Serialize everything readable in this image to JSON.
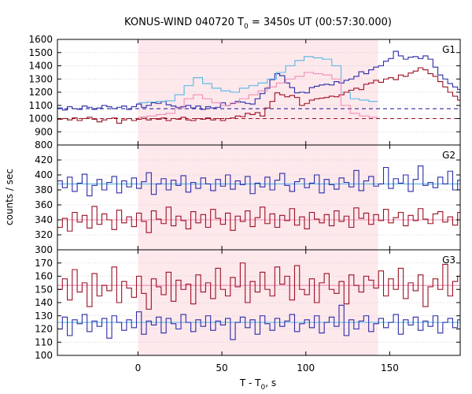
{
  "chart_data": {
    "type": "line",
    "title": "KONUS-WIND 040720 T",
    "title_sub": "0",
    "title_rest": " = 3450s UT (00:57:30.000)",
    "xlabel": "T - T",
    "xlabel_sub": "0",
    "xlabel_rest": ", s",
    "ylabel": "counts / sec",
    "xlim": [
      -48,
      192
    ],
    "xticks": [
      0,
      50,
      100,
      150
    ],
    "highlight": {
      "x0": 0,
      "x1": 143,
      "color": "#fde8ec"
    },
    "colors": {
      "blue": "#2b2ba8",
      "red": "#9b1022",
      "lightblue": "#55b8e6",
      "pink": "#f08eb6",
      "grid": "#cccccc"
    },
    "panels": [
      {
        "name": "G1",
        "ylim": [
          800,
          1600
        ],
        "yticks": [
          800,
          900,
          1000,
          1100,
          1200,
          1300,
          1400,
          1500,
          1600
        ],
        "background_levels": [
          {
            "y": 1075,
            "color": "blue",
            "dash": true
          },
          {
            "y": 1000,
            "color": "red",
            "dash": true
          }
        ],
        "series": [
          {
            "color": "blue",
            "step": 2.944,
            "x0": -48,
            "values": [
              1080,
              1065,
              1090,
              1075,
              1070,
              1095,
              1085,
              1070,
              1080,
              1100,
              1090,
              1075,
              1085,
              1095,
              1070,
              1090,
              1110,
              1085,
              1100,
              1120,
              1115,
              1130,
              1105,
              1095,
              1085,
              1090,
              1100,
              1080,
              1095,
              1070,
              1090,
              1080,
              1085,
              1120,
              1100,
              1115,
              1130,
              1125,
              1115,
              1110,
              1150,
              1190,
              1230,
              1295,
              1340,
              1325,
              1270,
              1235,
              1195,
              1200,
              1195,
              1235,
              1245,
              1255,
              1260,
              1255,
              1280,
              1270,
              1290,
              1300,
              1320,
              1355,
              1340,
              1370,
              1390,
              1400,
              1435,
              1455,
              1510,
              1475,
              1450,
              1465,
              1470,
              1455,
              1475,
              1450,
              1390,
              1330,
              1300,
              1265,
              1240,
              1220,
              1200,
              1175,
              1155,
              1150,
              1145,
              1140,
              1150,
              1135,
              1120,
              1125,
              1130,
              1120,
              1110,
              1100,
              1090,
              1080,
              1075,
              1080,
              1095,
              1070,
              1085,
              1090,
              1075,
              1080,
              1090,
              1070,
              1085,
              1095,
              1080,
              1075,
              1090,
              1085,
              1100,
              1080,
              1075,
              1085,
              1090,
              1095,
              1080,
              1090
            ]
          },
          {
            "color": "lightblue",
            "step": 5.5,
            "x0": 0,
            "values": [
              1120,
              1125,
              1130,
              1135,
              1180,
              1250,
              1310,
              1265,
              1230,
              1210,
              1200,
              1230,
              1250,
              1270,
              1300,
              1350,
              1400,
              1440,
              1470,
              1460,
              1450,
              1400,
              1200,
              1150,
              1140,
              1130
            ]
          },
          {
            "color": "red",
            "step": 2.944,
            "x0": -48,
            "values": [
              995,
              1000,
              990,
              1005,
              985,
              1000,
              1010,
              995,
              975,
              990,
              1000,
              1005,
              965,
              990,
              1000,
              985,
              995,
              1010,
              990,
              1000,
              995,
              1005,
              985,
              1000,
              995,
              1010,
              990,
              985,
              1000,
              995,
              1005,
              990,
              1000,
              985,
              1000,
              1005,
              1020,
              1015,
              1040,
              1030,
              1045,
              1020,
              1080,
              1130,
              1195,
              1180,
              1165,
              1175,
              1160,
              1100,
              1115,
              1140,
              1150,
              1155,
              1160,
              1170,
              1165,
              1180,
              1200,
              1215,
              1230,
              1220,
              1260,
              1270,
              1290,
              1275,
              1300,
              1310,
              1295,
              1330,
              1320,
              1345,
              1360,
              1385,
              1370,
              1340,
              1320,
              1280,
              1240,
              1200,
              1170,
              1140,
              1120,
              1100,
              1080,
              1065,
              1050,
              1040,
              1035,
              1030,
              1040,
              1020,
              1010,
              1020,
              1005,
              995,
              1000,
              1015,
              990,
              1010,
              995,
              990,
              1005,
              1000,
              985,
              1000,
              995,
              1010,
              990,
              985,
              1000,
              1005,
              995,
              990,
              1000,
              995,
              985,
              1000,
              990,
              995,
              1005,
              990
            ]
          },
          {
            "color": "pink",
            "step": 5.5,
            "x0": 0,
            "values": [
              1010,
              1020,
              1030,
              1040,
              1080,
              1150,
              1180,
              1150,
              1120,
              1100,
              1120,
              1150,
              1180,
              1210,
              1240,
              1270,
              1300,
              1320,
              1350,
              1340,
              1330,
              1300,
              1100,
              1040,
              1020,
              1010
            ]
          }
        ]
      },
      {
        "name": "G2",
        "ylim": [
          300,
          440
        ],
        "yticks": [
          300,
          320,
          340,
          360,
          380,
          400,
          420
        ],
        "background_levels": [
          {
            "y": 388,
            "color": "lightblue",
            "dash": false
          },
          {
            "y": 340,
            "color": "pink",
            "dash": false
          }
        ],
        "series": [
          {
            "color": "blue",
            "step": 2.944,
            "x0": -48,
            "values": [
              392,
              383,
              397,
              378,
              389,
              401,
              372,
              386,
              394,
              380,
              390,
              398,
              376,
              392,
              384,
              396,
              382,
              391,
              403,
              374,
              388,
              395,
              380,
              393,
              386,
              399,
              377,
              390,
              382,
              396,
              388,
              379,
              394,
              385,
              400,
              381,
              392,
              387,
              398,
              375,
              389,
              384,
              397,
              380,
              393,
              402,
              386,
              378,
              391,
              395,
              383,
              389,
              400,
              376,
              394,
              387,
              381,
              396,
              390,
              384,
              406,
              379,
              392,
              398,
              385,
              388,
              410,
              382,
              395,
              389,
              400,
              378,
              394,
              412,
              386,
              390,
              383,
              397,
              388,
              405,
              380,
              393,
              387,
              399,
              384,
              396,
              390,
              381,
              403,
              388,
              392,
              378,
              396,
              386,
              401,
              389,
              383,
              397,
              391,
              385,
              402,
              379,
              394,
              388,
              397,
              382,
              392,
              400,
              386,
              391,
              381,
              396,
              388,
              393,
              384,
              398,
              389,
              387,
              400,
              390
            ]
          },
          {
            "color": "red",
            "step": 2.944,
            "x0": -48,
            "values": [
              330,
              342,
              325,
              350,
              337,
              346,
              329,
              358,
              334,
              348,
              340,
              327,
              353,
              336,
              344,
              331,
              349,
              338,
              323,
              352,
              341,
              335,
              357,
              332,
              345,
              339,
              328,
              351,
              336,
              347,
              330,
              354,
              342,
              334,
              349,
              326,
              345,
              338,
              352,
              331,
              343,
              357,
              335,
              348,
              330,
              346,
              339,
              355,
              333,
              344,
              328,
              350,
              341,
              336,
              347,
              332,
              352,
              338,
              345,
              330,
              356,
              342,
              349,
              334,
              347,
              339,
              354,
              336,
              343,
              350,
              332,
              346,
              339,
              355,
              341,
              335,
              348,
              351,
              337,
              344,
              333,
              350,
              340,
              346,
              353,
              338,
              344,
              331,
              349,
              342,
              336,
              352,
              340,
              347,
              333,
              350,
              343,
              338,
              355,
              341,
              346,
              332,
              349,
              339,
              345,
              336,
              351,
              342,
              334,
              348,
              340,
              352,
              337,
              345,
              331,
              349,
              343,
              338,
              353,
              340
            ]
          }
        ]
      },
      {
        "name": "G3",
        "ylim": [
          100,
          180
        ],
        "yticks": [
          100,
          110,
          120,
          130,
          140,
          150,
          160,
          170
        ],
        "background_levels": [
          {
            "y": 153,
            "color": "pink",
            "dash": false
          },
          {
            "y": 125,
            "color": "lightblue",
            "dash": false
          }
        ],
        "series": [
          {
            "color": "red",
            "step": 2.944,
            "x0": -48,
            "values": [
              150,
              158,
              142,
              165,
              148,
              155,
              137,
              162,
              145,
              153,
              149,
              167,
              140,
              156,
              151,
              144,
              160,
              147,
              135,
              158,
              152,
              146,
              163,
              141,
              157,
              150,
              154,
              139,
              161,
              148,
              155,
              143,
              166,
              150,
              145,
              159,
              152,
              170,
              140,
              156,
              148,
              163,
              150,
              145,
              167,
              154,
              160,
              142,
              168,
              150,
              146,
              158,
              140,
              155,
              162,
              150,
              147,
              156,
              139,
              161,
              153,
              148,
              160,
              157,
              151,
              164,
              145,
              158,
              150,
              166,
              143,
              155,
              149,
              161,
              137,
              152,
              158,
              150,
              169,
              145,
              156,
              160,
              148,
              153,
              141,
              163,
              150,
              157,
              145,
              166,
              152,
              149,
              170,
              140,
              156,
              161,
              147,
              155,
              143,
              168,
              150,
              154,
              141,
              163,
              148,
              157,
              151,
              146,
              162,
              153,
              144,
              159,
              150,
              155,
              147,
              161,
              149,
              152,
              158,
              150
            ]
          },
          {
            "color": "blue",
            "step": 2.944,
            "x0": -48,
            "values": [
              120,
              129,
              115,
              127,
              124,
              131,
              118,
              126,
              122,
              128,
              113,
              130,
              125,
              119,
              127,
              121,
              133,
              116,
              126,
              123,
              129,
              117,
              128,
              124,
              120,
              131,
              125,
              118,
              127,
              122,
              130,
              119,
              126,
              123,
              128,
              112,
              125,
              129,
              121,
              127,
              116,
              130,
              124,
              119,
              128,
              122,
              126,
              131,
              118,
              124,
              127,
              121,
              130,
              117,
              125,
              129,
              122,
              138,
              115,
              127,
              120,
              126,
              130,
              118,
              124,
              128,
              121,
              125,
              131,
              116,
              127,
              123,
              129,
              119,
              126,
              122,
              130,
              117,
              125,
              128,
              121,
              127,
              124,
              119,
              130,
              115,
              126,
              122,
              128,
              120,
              125,
              131,
              118,
              127,
              123,
              129,
              116,
              126,
              124,
              121,
              128,
              119,
              130,
              125,
              122,
              127,
              118,
              126,
              129,
              121,
              124,
              128,
              120,
              126,
              123,
              130,
              119,
              125,
              127,
              122
            ]
          }
        ]
      }
    ]
  }
}
